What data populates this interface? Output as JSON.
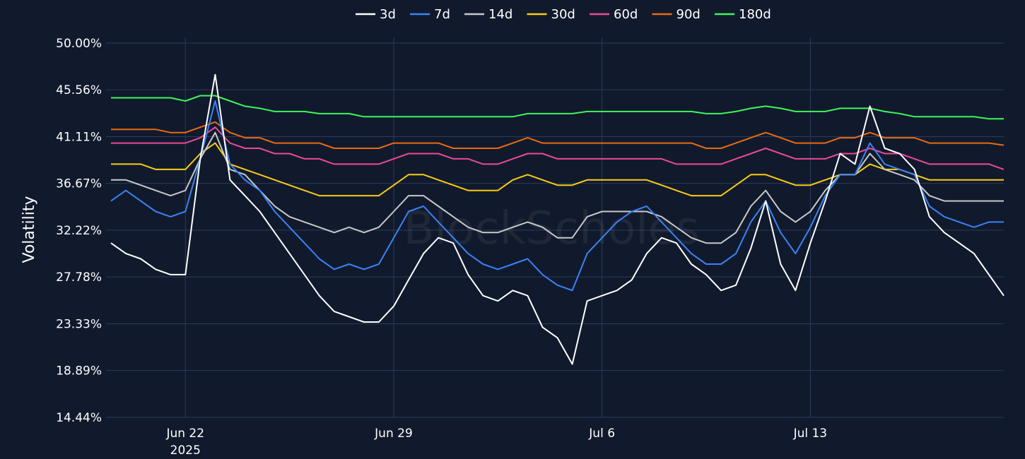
{
  "chart_data": {
    "type": "line",
    "watermark": "BlockScholes",
    "ylabel": "Volatility",
    "xlabel": "",
    "ylim": [
      14.44,
      50.0
    ],
    "y_ticks": [
      "14.44%",
      "18.89%",
      "23.33%",
      "27.78%",
      "32.22%",
      "36.67%",
      "41.11%",
      "45.56%",
      "50.00%"
    ],
    "y_tick_values": [
      14.44,
      18.89,
      23.33,
      27.78,
      32.22,
      36.67,
      41.11,
      45.56,
      50.0
    ],
    "x_ticks": [
      {
        "label": "Jun 22",
        "sublabel": "2025",
        "date": "2025-06-22"
      },
      {
        "label": "Jun 29",
        "sublabel": "",
        "date": "2025-06-29"
      },
      {
        "label": "Jul 6",
        "sublabel": "",
        "date": "2025-07-06"
      },
      {
        "label": "Jul 13",
        "sublabel": "",
        "date": "2025-07-13"
      }
    ],
    "x_range": [
      "2025-06-19T08:00",
      "2025-07-19T12:00"
    ],
    "grid": true,
    "legend_position": "top-center",
    "x": [
      "2025-06-19T12:00",
      "2025-06-20",
      "2025-06-20T12:00",
      "2025-06-21",
      "2025-06-21T12:00",
      "2025-06-22",
      "2025-06-22T12:00",
      "2025-06-23",
      "2025-06-23T12:00",
      "2025-06-24",
      "2025-06-24T12:00",
      "2025-06-25",
      "2025-06-25T12:00",
      "2025-06-26",
      "2025-06-26T12:00",
      "2025-06-27",
      "2025-06-27T12:00",
      "2025-06-28",
      "2025-06-28T12:00",
      "2025-06-29",
      "2025-06-29T12:00",
      "2025-06-30",
      "2025-06-30T12:00",
      "2025-07-01",
      "2025-07-01T12:00",
      "2025-07-02",
      "2025-07-02T12:00",
      "2025-07-03",
      "2025-07-03T12:00",
      "2025-07-04",
      "2025-07-04T12:00",
      "2025-07-05",
      "2025-07-05T12:00",
      "2025-07-06",
      "2025-07-06T12:00",
      "2025-07-07",
      "2025-07-07T12:00",
      "2025-07-08",
      "2025-07-08T12:00",
      "2025-07-09",
      "2025-07-09T12:00",
      "2025-07-10",
      "2025-07-10T12:00",
      "2025-07-11",
      "2025-07-11T12:00",
      "2025-07-12",
      "2025-07-12T12:00",
      "2025-07-13",
      "2025-07-13T12:00",
      "2025-07-14",
      "2025-07-14T12:00",
      "2025-07-15",
      "2025-07-15T12:00",
      "2025-07-16",
      "2025-07-16T12:00",
      "2025-07-17",
      "2025-07-17T12:00",
      "2025-07-18",
      "2025-07-18T12:00",
      "2025-07-19",
      "2025-07-19T12:00"
    ],
    "series": [
      {
        "name": "3d",
        "color": "#ffffff",
        "values": [
          31.0,
          30.0,
          29.5,
          28.5,
          28.0,
          28.0,
          39.0,
          47.0,
          37.0,
          35.5,
          34.0,
          32.0,
          30.0,
          28.0,
          26.0,
          24.5,
          24.0,
          23.5,
          23.5,
          25.0,
          27.5,
          30.0,
          31.5,
          31.0,
          28.0,
          26.0,
          25.5,
          26.5,
          26.0,
          23.0,
          22.0,
          19.5,
          25.5,
          26.0,
          26.5,
          27.5,
          30.0,
          31.5,
          31.0,
          29.0,
          28.0,
          26.5,
          27.0,
          30.5,
          35.0,
          29.0,
          26.5,
          31.0,
          35.0,
          39.5,
          38.5,
          44.0,
          40.0,
          39.5,
          38.0,
          33.5,
          32.0,
          31.0,
          30.0,
          28.0,
          26.0
        ]
      },
      {
        "name": "7d",
        "color": "#3b82f6",
        "values": [
          35.0,
          36.0,
          35.0,
          34.0,
          33.5,
          34.0,
          39.0,
          44.5,
          38.5,
          37.0,
          36.0,
          34.0,
          32.5,
          31.0,
          29.5,
          28.5,
          29.0,
          28.5,
          29.0,
          31.5,
          34.0,
          34.5,
          33.0,
          31.5,
          30.0,
          29.0,
          28.5,
          29.0,
          29.5,
          28.0,
          27.0,
          26.5,
          30.0,
          31.5,
          33.0,
          34.0,
          34.5,
          33.0,
          31.5,
          30.0,
          29.0,
          29.0,
          30.0,
          33.0,
          35.0,
          32.0,
          30.0,
          32.5,
          35.5,
          37.5,
          37.5,
          40.5,
          38.5,
          38.0,
          37.5,
          34.5,
          33.5,
          33.0,
          32.5,
          33.0,
          33.0
        ]
      },
      {
        "name": "14d",
        "color": "#c8c8c8",
        "values": [
          37.0,
          37.0,
          36.5,
          36.0,
          35.5,
          36.0,
          39.0,
          41.5,
          38.0,
          37.5,
          36.0,
          34.5,
          33.5,
          33.0,
          32.5,
          32.0,
          32.5,
          32.0,
          32.5,
          34.0,
          35.5,
          35.5,
          34.5,
          33.5,
          32.5,
          32.0,
          32.0,
          32.5,
          33.0,
          32.5,
          31.5,
          31.5,
          33.5,
          34.0,
          34.0,
          34.0,
          34.0,
          33.5,
          32.5,
          31.5,
          31.0,
          31.0,
          32.0,
          34.5,
          36.0,
          34.0,
          33.0,
          34.0,
          36.0,
          37.5,
          37.5,
          39.5,
          38.0,
          37.5,
          37.0,
          35.5,
          35.0,
          35.0,
          35.0,
          35.0,
          35.0
        ]
      },
      {
        "name": "30d",
        "color": "#facc15",
        "values": [
          38.5,
          38.5,
          38.5,
          38.0,
          38.0,
          38.0,
          39.5,
          40.5,
          38.5,
          38.0,
          37.5,
          37.0,
          36.5,
          36.0,
          35.5,
          35.5,
          35.5,
          35.5,
          35.5,
          36.5,
          37.5,
          37.5,
          37.0,
          36.5,
          36.0,
          36.0,
          36.0,
          37.0,
          37.5,
          37.0,
          36.5,
          36.5,
          37.0,
          37.0,
          37.0,
          37.0,
          37.0,
          36.5,
          36.0,
          35.5,
          35.5,
          35.5,
          36.5,
          37.5,
          37.5,
          37.0,
          36.5,
          36.5,
          37.0,
          37.5,
          37.5,
          38.5,
          38.0,
          38.0,
          37.5,
          37.0,
          37.0,
          37.0,
          37.0,
          37.0,
          37.0
        ]
      },
      {
        "name": "60d",
        "color": "#ec4899",
        "values": [
          40.5,
          40.5,
          40.5,
          40.5,
          40.5,
          40.5,
          41.0,
          42.0,
          40.5,
          40.0,
          40.0,
          39.5,
          39.5,
          39.0,
          39.0,
          38.5,
          38.5,
          38.5,
          38.5,
          39.0,
          39.5,
          39.5,
          39.5,
          39.0,
          39.0,
          38.5,
          38.5,
          39.0,
          39.5,
          39.5,
          39.0,
          39.0,
          39.0,
          39.0,
          39.0,
          39.0,
          39.0,
          39.0,
          38.5,
          38.5,
          38.5,
          38.5,
          39.0,
          39.5,
          40.0,
          39.5,
          39.0,
          39.0,
          39.0,
          39.5,
          39.5,
          40.0,
          39.5,
          39.5,
          39.0,
          38.5,
          38.5,
          38.5,
          38.5,
          38.5,
          38.0
        ]
      },
      {
        "name": "90d",
        "color": "#ea6a12",
        "values": [
          41.8,
          41.8,
          41.8,
          41.8,
          41.5,
          41.5,
          42.0,
          42.5,
          41.5,
          41.0,
          41.0,
          40.5,
          40.5,
          40.5,
          40.5,
          40.0,
          40.0,
          40.0,
          40.0,
          40.5,
          40.5,
          40.5,
          40.5,
          40.0,
          40.0,
          40.0,
          40.0,
          40.5,
          41.0,
          40.5,
          40.5,
          40.5,
          40.5,
          40.5,
          40.5,
          40.5,
          40.5,
          40.5,
          40.5,
          40.5,
          40.0,
          40.0,
          40.5,
          41.0,
          41.5,
          41.0,
          40.5,
          40.5,
          40.5,
          41.0,
          41.0,
          41.5,
          41.0,
          41.0,
          41.0,
          40.5,
          40.5,
          40.5,
          40.5,
          40.5,
          40.3
        ]
      },
      {
        "name": "180d",
        "color": "#3ef55a",
        "values": [
          44.8,
          44.8,
          44.8,
          44.8,
          44.8,
          44.5,
          45.0,
          45.0,
          44.5,
          44.0,
          43.8,
          43.5,
          43.5,
          43.5,
          43.3,
          43.3,
          43.3,
          43.0,
          43.0,
          43.0,
          43.0,
          43.0,
          43.0,
          43.0,
          43.0,
          43.0,
          43.0,
          43.0,
          43.3,
          43.3,
          43.3,
          43.3,
          43.5,
          43.5,
          43.5,
          43.5,
          43.5,
          43.5,
          43.5,
          43.5,
          43.3,
          43.3,
          43.5,
          43.8,
          44.0,
          43.8,
          43.5,
          43.5,
          43.5,
          43.8,
          43.8,
          43.8,
          43.5,
          43.3,
          43.0,
          43.0,
          43.0,
          43.0,
          43.0,
          42.8,
          42.8
        ]
      }
    ]
  }
}
